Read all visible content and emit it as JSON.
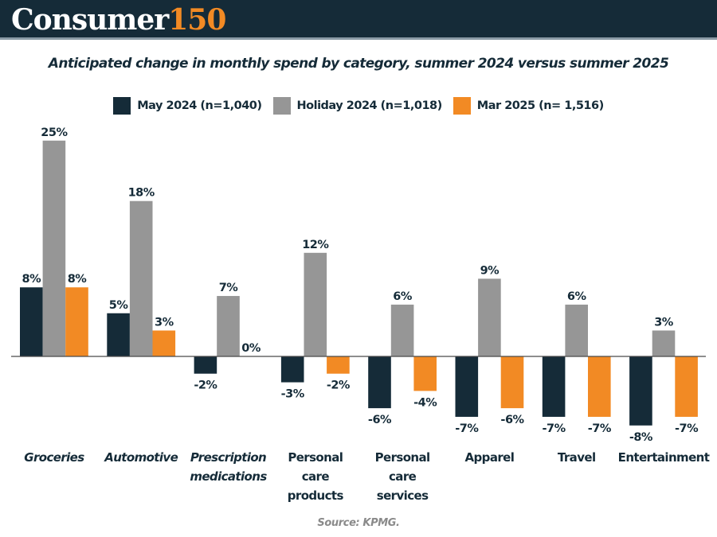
{
  "header": {
    "brand_main": "Consumer",
    "brand_accent": "150"
  },
  "source": "Source: KPMG.",
  "colors": {
    "navy": "#152b38",
    "gray": "#969696",
    "orange": "#f28a24"
  },
  "chart_data": {
    "type": "bar",
    "title": "Anticipated change in monthly spend by category, summer 2024 versus summer 2025",
    "xlabel": "",
    "ylabel": "",
    "ylim": [
      -9,
      26
    ],
    "grid": false,
    "legend_position": "top-center",
    "value_suffix": "%",
    "categories": [
      {
        "lines": [
          "Groceries"
        ],
        "italic": true
      },
      {
        "lines": [
          "Automotive"
        ],
        "italic": true
      },
      {
        "lines": [
          "Prescription",
          "medications"
        ],
        "italic": true
      },
      {
        "lines": [
          "Personal",
          "care",
          "products"
        ],
        "italic": false
      },
      {
        "lines": [
          "Personal",
          "care",
          "services"
        ],
        "italic": false
      },
      {
        "lines": [
          "Apparel"
        ],
        "italic": false
      },
      {
        "lines": [
          "Travel"
        ],
        "italic": false
      },
      {
        "lines": [
          "Entertainment"
        ],
        "italic": false
      }
    ],
    "series": [
      {
        "name": "May 2024 (n=1,040)",
        "color": "#152b38",
        "values": [
          8,
          5,
          -2,
          -3,
          -6,
          -7,
          -7,
          -8
        ]
      },
      {
        "name": "Holiday 2024 (n=1,018)",
        "color": "#969696",
        "values": [
          25,
          18,
          7,
          12,
          6,
          9,
          6,
          3
        ]
      },
      {
        "name": "Mar 2025 (n= 1,516)",
        "color": "#f28a24",
        "values": [
          8,
          3,
          0,
          -2,
          -4,
          -6,
          -7,
          -7
        ]
      }
    ]
  }
}
